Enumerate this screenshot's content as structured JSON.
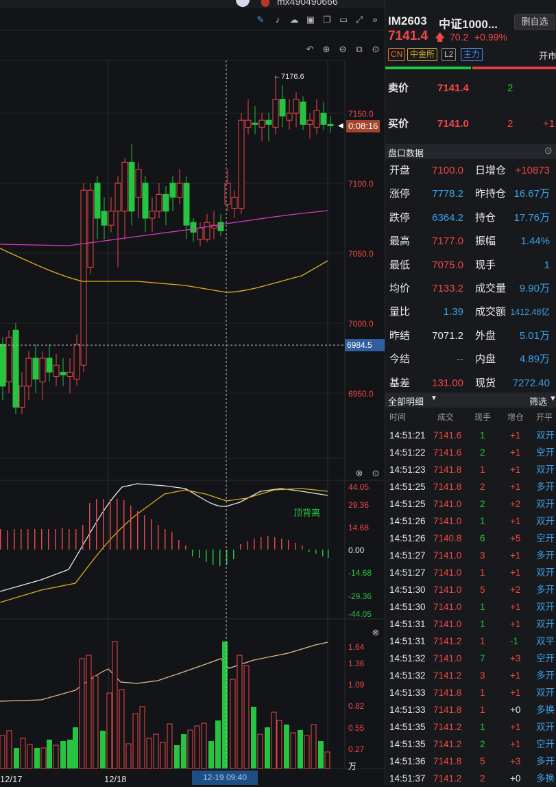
{
  "topbar": {
    "user": "mx490490666"
  },
  "price_axis": {
    "labels": [
      "7150.0",
      "7100.0",
      "7050.0",
      "7000.0",
      "6950.0"
    ],
    "crosshair_price": "6984.5",
    "countdown": "0:08:16",
    "high_marker": "7176.6"
  },
  "date_axis": {
    "labels": [
      "12/17",
      "12/18"
    ],
    "hover": "12-19 09:40"
  },
  "macd": {
    "labels": [
      "44.05",
      "29.36",
      "14.68",
      "0.00",
      "-14.68",
      "-29.36",
      "-44.05"
    ],
    "signal_text": "顶背离"
  },
  "volume": {
    "labels": [
      "1.64",
      "1.36",
      "1.09",
      "0.82",
      "0.55",
      "0.27"
    ],
    "unit": "万"
  },
  "header": {
    "code": "IM2603",
    "name": "中证1000...",
    "fav_button": "删自选",
    "price": "7141.4",
    "change": "70.2",
    "change_pct": "+0.99%",
    "tags": [
      "CN",
      "中金所",
      "L2",
      "主力"
    ],
    "status": "开市"
  },
  "orderbook": {
    "ask_label": "卖价",
    "ask_price": "7141.4",
    "ask_vol": "2",
    "bid_label": "买价",
    "bid_price": "7141.0",
    "bid_vol": "2",
    "bid_extra": "+1"
  },
  "quote_title": "盘口数据",
  "quote": [
    {
      "l1": "开盘",
      "v1": "7100.0",
      "c1": "red",
      "l2": "日增仓",
      "v2": "+10873",
      "c2": "red"
    },
    {
      "l1": "涨停",
      "v1": "7778.2",
      "c1": "blue",
      "l2": "昨持仓",
      "v2": "16.67万",
      "c2": "blue"
    },
    {
      "l1": "跌停",
      "v1": "6364.2",
      "c1": "blue",
      "l2": "持仓",
      "v2": "17.76万",
      "c2": "blue"
    },
    {
      "l1": "最高",
      "v1": "7177.0",
      "c1": "red",
      "l2": "振幅",
      "v2": "1.44%",
      "c2": "blue"
    },
    {
      "l1": "最低",
      "v1": "7075.0",
      "c1": "red",
      "l2": "现手",
      "v2": "1",
      "c2": "blue"
    },
    {
      "l1": "均价",
      "v1": "7133.2",
      "c1": "red",
      "l2": "成交量",
      "v2": "9.90万",
      "c2": "blue"
    },
    {
      "l1": "量比",
      "v1": "1.39",
      "c1": "blue",
      "l2": "成交额",
      "v2": "1412.48亿",
      "c2": "blue"
    },
    {
      "l1": "昨结",
      "v1": "7071.2",
      "c1": "white",
      "l2": "外盘",
      "v2": "5.01万",
      "c2": "blue"
    },
    {
      "l1": "今结",
      "v1": "--",
      "c1": "blue",
      "l2": "内盘",
      "v2": "4.89万",
      "c2": "blue"
    },
    {
      "l1": "基差",
      "v1": "131.00",
      "c1": "red",
      "l2": "现货",
      "v2": "7272.40",
      "c2": "blue"
    }
  ],
  "ticks_title": "全部明细",
  "filter": "筛选",
  "ticks_header": [
    "时间",
    "成交",
    "现手",
    "增仓",
    "开平"
  ],
  "ticks": [
    {
      "t": "14:51:21",
      "p": "7141.6",
      "v": "1",
      "o": "+1",
      "a": "双开",
      "pc": "red",
      "vc": "green",
      "oc": "red",
      "ac": "blue"
    },
    {
      "t": "14:51:22",
      "p": "7141.6",
      "v": "2",
      "o": "+1",
      "a": "空开",
      "pc": "red",
      "vc": "green",
      "oc": "red",
      "ac": "blue"
    },
    {
      "t": "14:51:23",
      "p": "7141.8",
      "v": "1",
      "o": "+1",
      "a": "双开",
      "pc": "red",
      "vc": "red",
      "oc": "red",
      "ac": "blue"
    },
    {
      "t": "14:51:25",
      "p": "7141.8",
      "v": "2",
      "o": "+1",
      "a": "多开",
      "pc": "red",
      "vc": "red",
      "oc": "red",
      "ac": "blue"
    },
    {
      "t": "14:51:25",
      "p": "7141.0",
      "v": "2",
      "o": "+2",
      "a": "双开",
      "pc": "red",
      "vc": "green",
      "oc": "red",
      "ac": "blue"
    },
    {
      "t": "14:51:26",
      "p": "7141.0",
      "v": "1",
      "o": "+1",
      "a": "双开",
      "pc": "red",
      "vc": "green",
      "oc": "red",
      "ac": "blue"
    },
    {
      "t": "14:51:26",
      "p": "7140.8",
      "v": "6",
      "o": "+5",
      "a": "空开",
      "pc": "red",
      "vc": "green",
      "oc": "red",
      "ac": "blue"
    },
    {
      "t": "14:51:27",
      "p": "7141.0",
      "v": "3",
      "o": "+1",
      "a": "多开",
      "pc": "red",
      "vc": "red",
      "oc": "red",
      "ac": "blue"
    },
    {
      "t": "14:51:27",
      "p": "7141.0",
      "v": "1",
      "o": "+1",
      "a": "双开",
      "pc": "red",
      "vc": "red",
      "oc": "red",
      "ac": "blue"
    },
    {
      "t": "14:51:30",
      "p": "7141.0",
      "v": "5",
      "o": "+2",
      "a": "多开",
      "pc": "red",
      "vc": "red",
      "oc": "red",
      "ac": "blue"
    },
    {
      "t": "14:51:30",
      "p": "7141.0",
      "v": "1",
      "o": "+1",
      "a": "双开",
      "pc": "red",
      "vc": "green",
      "oc": "red",
      "ac": "blue"
    },
    {
      "t": "14:51:31",
      "p": "7141.0",
      "v": "1",
      "o": "+1",
      "a": "双开",
      "pc": "red",
      "vc": "green",
      "oc": "red",
      "ac": "blue"
    },
    {
      "t": "14:51:31",
      "p": "7141.2",
      "v": "1",
      "o": "-1",
      "a": "双平",
      "pc": "red",
      "vc": "red",
      "oc": "green",
      "ac": "blue"
    },
    {
      "t": "14:51:32",
      "p": "7141.0",
      "v": "7",
      "o": "+3",
      "a": "空开",
      "pc": "red",
      "vc": "green",
      "oc": "red",
      "ac": "blue"
    },
    {
      "t": "14:51:32",
      "p": "7141.2",
      "v": "3",
      "o": "+1",
      "a": "多开",
      "pc": "red",
      "vc": "red",
      "oc": "red",
      "ac": "blue"
    },
    {
      "t": "14:51:33",
      "p": "7141.8",
      "v": "1",
      "o": "+1",
      "a": "双开",
      "pc": "red",
      "vc": "red",
      "oc": "red",
      "ac": "blue"
    },
    {
      "t": "14:51:33",
      "p": "7141.8",
      "v": "1",
      "o": "+0",
      "a": "多换",
      "pc": "red",
      "vc": "red",
      "oc": "white",
      "ac": "blue"
    },
    {
      "t": "14:51:35",
      "p": "7141.2",
      "v": "1",
      "o": "+1",
      "a": "双开",
      "pc": "red",
      "vc": "green",
      "oc": "red",
      "ac": "blue"
    },
    {
      "t": "14:51:35",
      "p": "7141.2",
      "v": "2",
      "o": "+1",
      "a": "空开",
      "pc": "red",
      "vc": "green",
      "oc": "red",
      "ac": "blue"
    },
    {
      "t": "14:51:36",
      "p": "7141.8",
      "v": "5",
      "o": "+3",
      "a": "多开",
      "pc": "red",
      "vc": "red",
      "oc": "red",
      "ac": "blue"
    },
    {
      "t": "14:51:37",
      "p": "7141.2",
      "v": "2",
      "o": "+0",
      "a": "多换",
      "pc": "red",
      "vc": "red",
      "oc": "white",
      "ac": "blue"
    }
  ]
}
